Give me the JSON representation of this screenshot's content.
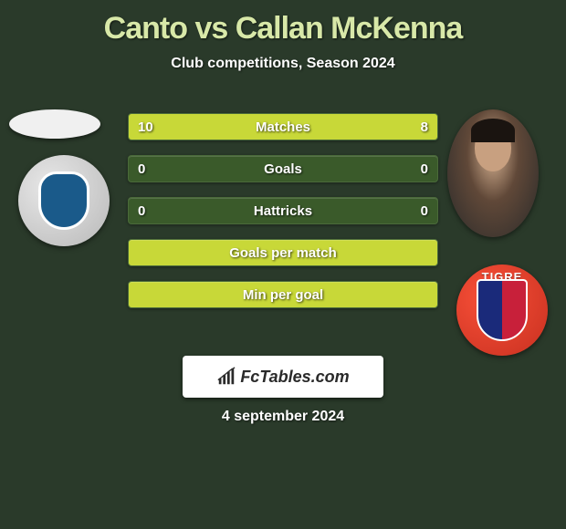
{
  "title": "Canto vs Callan McKenna",
  "subtitle": "Club competitions, Season 2024",
  "date": "4 september 2024",
  "brand": {
    "text": "FcTables.com"
  },
  "colors": {
    "background": "#2a3a2a",
    "title": "#d8e8a8",
    "text": "#ffffff",
    "bar_border": "#4a6a3a",
    "bar_fill_left": "#c8d838",
    "bar_fill_right": "#c8d838",
    "bar_bg": "#3a5a2a",
    "logo_bg": "#ffffff",
    "club_right_bg": "#f85038",
    "club_right_shield_left": "#1a2a7a",
    "club_right_shield_right": "#c8203a",
    "club_right_label": "TIGRE"
  },
  "bars": [
    {
      "label": "Matches",
      "left": "10",
      "right": "8",
      "left_pct": 55,
      "right_pct": 45,
      "show_values": true,
      "full_fill": false
    },
    {
      "label": "Goals",
      "left": "0",
      "right": "0",
      "left_pct": 0,
      "right_pct": 0,
      "show_values": true,
      "full_fill": false
    },
    {
      "label": "Hattricks",
      "left": "0",
      "right": "0",
      "left_pct": 0,
      "right_pct": 0,
      "show_values": true,
      "full_fill": false
    },
    {
      "label": "Goals per match",
      "left": "",
      "right": "",
      "left_pct": 0,
      "right_pct": 0,
      "show_values": false,
      "full_fill": true
    },
    {
      "label": "Min per goal",
      "left": "",
      "right": "",
      "left_pct": 0,
      "right_pct": 0,
      "show_values": false,
      "full_fill": true
    }
  ]
}
